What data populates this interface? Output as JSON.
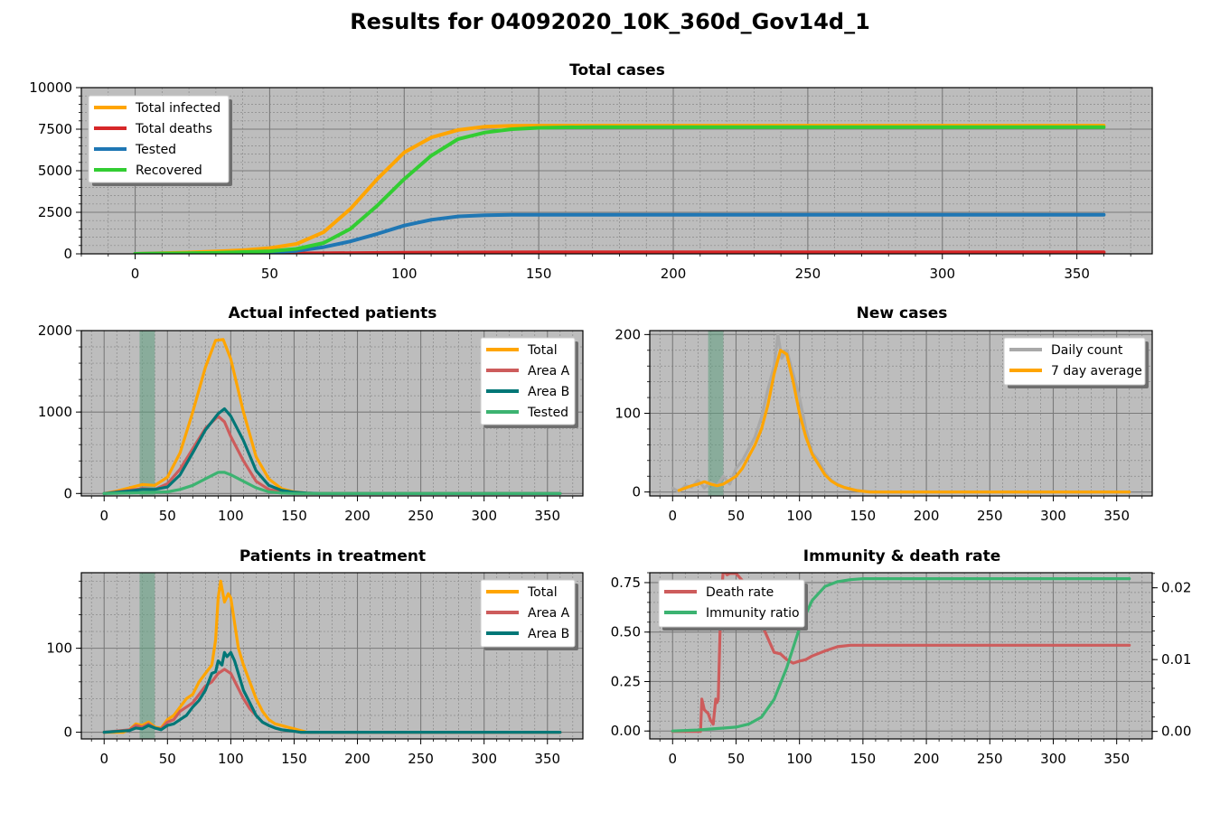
{
  "figure": {
    "title": "Results for 04092020_10K_360d_Gov14d_1",
    "background": "#ffffff",
    "axes_facecolor": "#bdbdbd"
  },
  "chart_data": [
    {
      "id": "total",
      "type": "line",
      "title": "Total cases",
      "xlabel": "",
      "ylabel": "",
      "xlim": [
        -20,
        378
      ],
      "ylim": [
        0,
        10000
      ],
      "xticks": [
        0,
        50,
        100,
        150,
        200,
        250,
        300,
        350
      ],
      "yticks": [
        0,
        2500,
        5000,
        7500,
        10000
      ],
      "grid": true,
      "legend_position": "top-left",
      "series": [
        {
          "name": "Total infected",
          "color": "#ffa500",
          "x": [
            0,
            20,
            40,
            50,
            60,
            70,
            80,
            90,
            100,
            110,
            120,
            130,
            140,
            150,
            160,
            360
          ],
          "values": [
            0,
            80,
            220,
            350,
            600,
            1300,
            2700,
            4500,
            6100,
            7000,
            7450,
            7650,
            7700,
            7720,
            7720,
            7720
          ]
        },
        {
          "name": "Total deaths",
          "color": "#d62728",
          "x": [
            0,
            50,
            100,
            150,
            360
          ],
          "values": [
            0,
            10,
            70,
            90,
            95
          ]
        },
        {
          "name": "Tested",
          "color": "#1f77b4",
          "x": [
            0,
            30,
            50,
            60,
            70,
            80,
            90,
            100,
            110,
            120,
            130,
            140,
            150,
            360
          ],
          "values": [
            0,
            40,
            100,
            180,
            400,
            750,
            1200,
            1700,
            2050,
            2250,
            2320,
            2350,
            2350,
            2350
          ]
        },
        {
          "name": "Recovered",
          "color": "#32cd32",
          "x": [
            0,
            30,
            50,
            60,
            70,
            80,
            90,
            100,
            110,
            120,
            130,
            140,
            150,
            160,
            170,
            360
          ],
          "values": [
            0,
            60,
            160,
            300,
            650,
            1500,
            2900,
            4500,
            5900,
            6900,
            7300,
            7500,
            7580,
            7610,
            7620,
            7620
          ]
        }
      ]
    },
    {
      "id": "actual",
      "type": "line",
      "title": "Actual infected patients",
      "xlabel": "",
      "ylabel": "",
      "xlim": [
        -18,
        378
      ],
      "ylim": [
        -30,
        2000
      ],
      "xticks": [
        0,
        50,
        100,
        150,
        200,
        250,
        300,
        350
      ],
      "yticks": [
        0,
        1000,
        2000
      ],
      "grid": true,
      "legend_position": "top-right",
      "shaded_span": [
        28,
        40
      ],
      "series": [
        {
          "name": "Total",
          "color": "#ffa500",
          "x": [
            0,
            10,
            20,
            30,
            40,
            50,
            60,
            70,
            80,
            88,
            94,
            100,
            110,
            120,
            130,
            140,
            150,
            160,
            170,
            360
          ],
          "values": [
            0,
            30,
            70,
            110,
            100,
            200,
            500,
            1000,
            1550,
            1880,
            1890,
            1650,
            1000,
            450,
            180,
            60,
            20,
            5,
            0,
            0
          ]
        },
        {
          "name": "Area A",
          "color": "#cd5c5c",
          "x": [
            0,
            20,
            30,
            40,
            50,
            60,
            70,
            80,
            90,
            95,
            100,
            110,
            120,
            130,
            140,
            150,
            160,
            360
          ],
          "values": [
            0,
            40,
            60,
            50,
            120,
            300,
            550,
            800,
            950,
            880,
            700,
            400,
            150,
            50,
            20,
            5,
            0,
            0
          ]
        },
        {
          "name": "Area B",
          "color": "#007777",
          "x": [
            0,
            20,
            30,
            40,
            50,
            60,
            70,
            80,
            90,
            95,
            100,
            110,
            120,
            130,
            140,
            150,
            160,
            170,
            360
          ],
          "values": [
            0,
            30,
            50,
            50,
            80,
            230,
            500,
            780,
            980,
            1040,
            950,
            650,
            280,
            100,
            40,
            15,
            5,
            0,
            0
          ]
        },
        {
          "name": "Tested",
          "color": "#3cb371",
          "x": [
            0,
            30,
            50,
            60,
            70,
            80,
            90,
            95,
            100,
            110,
            120,
            130,
            140,
            150,
            360
          ],
          "values": [
            0,
            10,
            20,
            50,
            100,
            180,
            260,
            260,
            230,
            150,
            70,
            20,
            5,
            0,
            0
          ]
        }
      ]
    },
    {
      "id": "new",
      "type": "line",
      "title": "New cases",
      "xlabel": "",
      "ylabel": "",
      "xlim": [
        -18,
        378
      ],
      "ylim": [
        -5,
        205
      ],
      "xticks": [
        0,
        50,
        100,
        150,
        200,
        250,
        300,
        350
      ],
      "yticks": [
        0,
        100,
        200
      ],
      "grid": true,
      "legend_position": "top-right",
      "shaded_span": [
        28,
        40
      ],
      "series": [
        {
          "name": "Daily count",
          "color": "#a9a9a9",
          "x": [
            0,
            5,
            10,
            15,
            20,
            25,
            30,
            35,
            40,
            45,
            50,
            55,
            60,
            65,
            70,
            75,
            80,
            83,
            86,
            90,
            95,
            100,
            105,
            110,
            115,
            120,
            125,
            130,
            135,
            140,
            145,
            150,
            160,
            360
          ],
          "values": [
            5,
            0,
            8,
            6,
            15,
            5,
            12,
            8,
            20,
            10,
            30,
            40,
            55,
            70,
            95,
            130,
            160,
            200,
            170,
            180,
            150,
            120,
            80,
            50,
            40,
            25,
            15,
            10,
            6,
            3,
            2,
            1,
            0,
            0
          ]
        },
        {
          "name": "7 day average",
          "color": "#ffa500",
          "x": [
            5,
            10,
            15,
            20,
            25,
            30,
            35,
            40,
            45,
            50,
            55,
            60,
            65,
            70,
            75,
            80,
            85,
            90,
            95,
            100,
            105,
            110,
            115,
            120,
            125,
            130,
            135,
            140,
            145,
            150,
            155,
            160,
            360
          ],
          "values": [
            2,
            5,
            8,
            10,
            13,
            10,
            8,
            10,
            15,
            20,
            30,
            45,
            60,
            80,
            110,
            150,
            180,
            175,
            140,
            100,
            70,
            48,
            35,
            22,
            14,
            9,
            6,
            4,
            2,
            1,
            0,
            0,
            0
          ]
        }
      ]
    },
    {
      "id": "treatment",
      "type": "line",
      "title": "Patients in treatment",
      "xlabel": "",
      "ylabel": "",
      "xlim": [
        -18,
        378
      ],
      "ylim": [
        -8,
        190
      ],
      "xticks": [
        0,
        50,
        100,
        150,
        200,
        250,
        300,
        350
      ],
      "yticks": [
        0,
        100
      ],
      "grid": true,
      "legend_position": "top-right",
      "shaded_span": [
        28,
        40
      ],
      "series": [
        {
          "name": "Total",
          "color": "#ffa500",
          "x": [
            0,
            15,
            20,
            25,
            30,
            35,
            40,
            45,
            50,
            55,
            60,
            65,
            70,
            75,
            80,
            85,
            88,
            90,
            92,
            95,
            98,
            100,
            103,
            106,
            110,
            115,
            120,
            125,
            130,
            135,
            140,
            145,
            150,
            155,
            160,
            360
          ],
          "values": [
            0,
            0,
            3,
            10,
            8,
            12,
            6,
            5,
            15,
            20,
            30,
            40,
            45,
            60,
            70,
            80,
            110,
            160,
            180,
            155,
            165,
            160,
            130,
            100,
            80,
            60,
            40,
            25,
            15,
            10,
            8,
            6,
            4,
            2,
            0,
            0
          ]
        },
        {
          "name": "Area A",
          "color": "#cd5c5c",
          "x": [
            0,
            20,
            25,
            30,
            35,
            40,
            45,
            50,
            55,
            60,
            65,
            70,
            75,
            80,
            85,
            90,
            95,
            100,
            105,
            110,
            115,
            120,
            125,
            130,
            135,
            140,
            145,
            150,
            155,
            360
          ],
          "values": [
            0,
            3,
            8,
            6,
            10,
            5,
            4,
            12,
            15,
            25,
            30,
            35,
            45,
            55,
            60,
            70,
            75,
            70,
            55,
            40,
            28,
            20,
            12,
            8,
            5,
            3,
            2,
            1,
            0,
            0
          ]
        },
        {
          "name": "Area B",
          "color": "#007777",
          "x": [
            0,
            20,
            25,
            30,
            35,
            40,
            45,
            50,
            55,
            60,
            65,
            70,
            75,
            80,
            85,
            88,
            90,
            93,
            95,
            97,
            100,
            103,
            106,
            110,
            115,
            120,
            125,
            130,
            135,
            140,
            145,
            150,
            155,
            360
          ],
          "values": [
            0,
            2,
            5,
            4,
            8,
            5,
            3,
            8,
            10,
            15,
            20,
            30,
            38,
            50,
            70,
            72,
            85,
            80,
            95,
            90,
            95,
            85,
            70,
            50,
            35,
            20,
            12,
            8,
            5,
            3,
            2,
            1,
            0,
            0
          ]
        }
      ]
    },
    {
      "id": "immunity",
      "type": "line",
      "title": "Immunity & death rate",
      "xlabel": "",
      "ylabel": "",
      "xlim": [
        -18,
        378
      ],
      "ylim": [
        -0.04,
        0.8
      ],
      "ylim_right": [
        -0.00105,
        0.0221
      ],
      "xticks": [
        0,
        50,
        100,
        150,
        200,
        250,
        300,
        350
      ],
      "yticks": [
        0.0,
        0.25,
        0.5,
        0.75
      ],
      "yticks_right": [
        0.0,
        0.01,
        0.02
      ],
      "grid": true,
      "legend_position": "top-left",
      "series": [
        {
          "name": "Death rate",
          "axis": "right",
          "color": "#cd5c5c",
          "x": [
            0,
            21,
            22,
            23,
            25,
            28,
            30,
            32,
            34,
            35,
            36,
            38,
            40,
            43,
            45,
            50,
            55,
            60,
            63,
            65,
            70,
            75,
            80,
            85,
            90,
            95,
            100,
            105,
            110,
            120,
            130,
            140,
            150,
            360
          ],
          "values": [
            0,
            0,
            0,
            0.0045,
            0.003,
            0.0025,
            0.0015,
            0.001,
            0.0045,
            0.004,
            0.0045,
            0.018,
            0.0225,
            0.0218,
            0.022,
            0.022,
            0.021,
            0.0195,
            0.018,
            0.018,
            0.015,
            0.013,
            0.011,
            0.0108,
            0.01,
            0.0095,
            0.0098,
            0.01,
            0.0105,
            0.0112,
            0.0118,
            0.012,
            0.012,
            0.012
          ]
        },
        {
          "name": "Immunity ratio",
          "axis": "left",
          "color": "#3cb371",
          "x": [
            0,
            20,
            30,
            40,
            50,
            60,
            70,
            80,
            90,
            100,
            110,
            120,
            130,
            140,
            150,
            160,
            170,
            360
          ],
          "values": [
            0,
            0.005,
            0.01,
            0.015,
            0.02,
            0.035,
            0.07,
            0.16,
            0.32,
            0.52,
            0.66,
            0.73,
            0.755,
            0.765,
            0.77,
            0.77,
            0.77,
            0.77
          ]
        }
      ]
    }
  ]
}
